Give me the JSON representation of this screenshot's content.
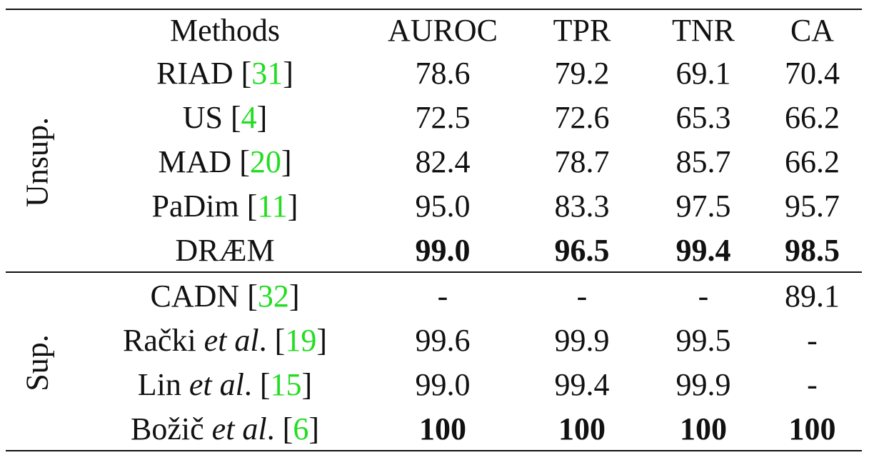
{
  "columns": [
    "Methods",
    "AUROC",
    "TPR",
    "TNR",
    "CA"
  ],
  "groups": [
    {
      "label": "Unsup.",
      "rows": [
        {
          "name": "RIAD ",
          "italic": "",
          "suffix": "",
          "ref": "31",
          "values": [
            "78.6",
            "79.2",
            "69.1",
            "70.4"
          ],
          "bold": [
            false,
            false,
            false,
            false
          ]
        },
        {
          "name": "US ",
          "italic": "",
          "suffix": "",
          "ref": "4",
          "values": [
            "72.5",
            "72.6",
            "65.3",
            "66.2"
          ],
          "bold": [
            false,
            false,
            false,
            false
          ]
        },
        {
          "name": "MAD ",
          "italic": "",
          "suffix": "",
          "ref": "20",
          "values": [
            "82.4",
            "78.7",
            "85.7",
            "66.2"
          ],
          "bold": [
            false,
            false,
            false,
            false
          ]
        },
        {
          "name": "PaDim ",
          "italic": "",
          "suffix": "",
          "ref": "11",
          "values": [
            "95.0",
            "83.3",
            "97.5",
            "95.7"
          ],
          "bold": [
            false,
            false,
            false,
            false
          ]
        },
        {
          "name": "DRÆM",
          "italic": "",
          "suffix": "",
          "ref": "",
          "values": [
            "99.0",
            "96.5",
            "99.4",
            "98.5"
          ],
          "bold": [
            true,
            true,
            true,
            true
          ]
        }
      ]
    },
    {
      "label": "Sup.",
      "rows": [
        {
          "name": "CADN ",
          "italic": "",
          "suffix": "",
          "ref": "32",
          "values": [
            "-",
            "-",
            "-",
            "89.1"
          ],
          "bold": [
            false,
            false,
            false,
            false
          ]
        },
        {
          "name": "Rački ",
          "italic": "et al",
          "suffix": ". ",
          "ref": "19",
          "values": [
            "99.6",
            "99.9",
            "99.5",
            "-"
          ],
          "bold": [
            false,
            false,
            false,
            false
          ]
        },
        {
          "name": "Lin ",
          "italic": "et al",
          "suffix": ". ",
          "ref": "15",
          "values": [
            "99.0",
            "99.4",
            "99.9",
            "-"
          ],
          "bold": [
            false,
            false,
            false,
            false
          ]
        },
        {
          "name": "Božič ",
          "italic": "et al",
          "suffix": ". ",
          "ref": "6",
          "values": [
            "100",
            "100",
            "100",
            "100"
          ],
          "bold": [
            true,
            true,
            true,
            true
          ]
        }
      ]
    }
  ]
}
